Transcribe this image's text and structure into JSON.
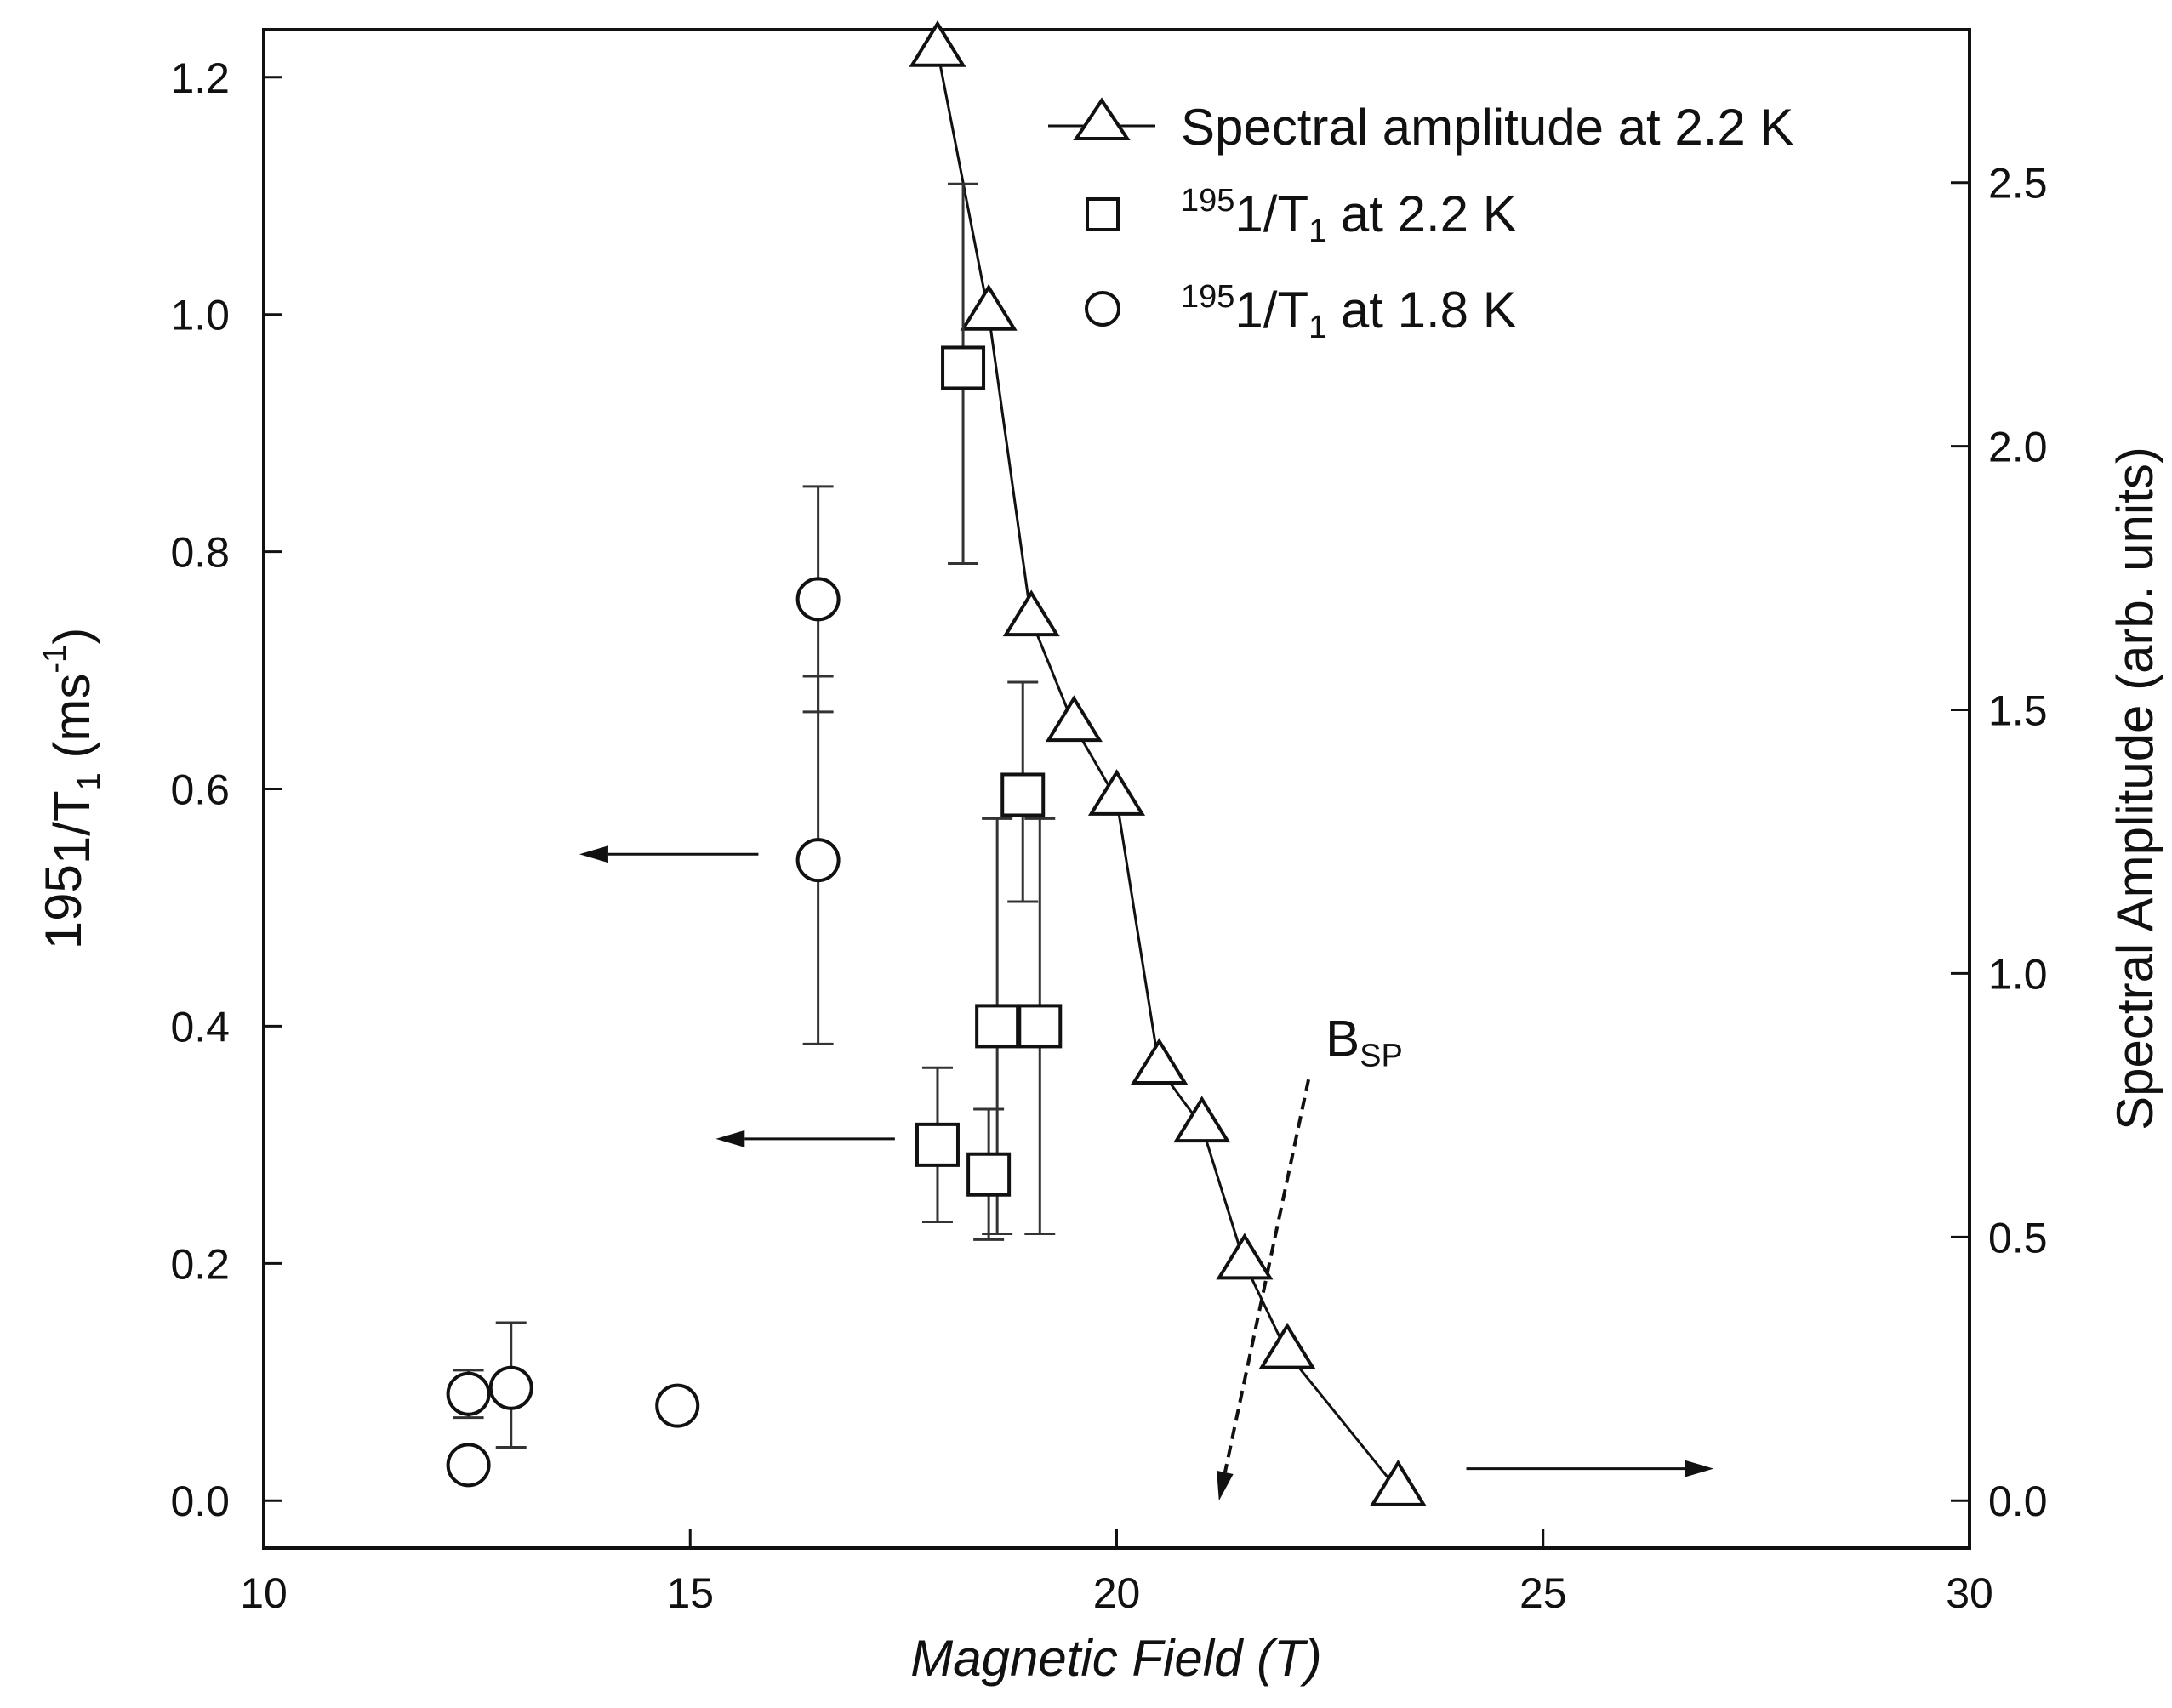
{
  "chart_data": {
    "type": "scatter",
    "xlabel": "Magnetic Field (T)",
    "ylabel_left": {
      "prefix": "195",
      "main": "1/T",
      "sub": "1",
      "unit": " (ms",
      "unit_sup": "-1",
      "close": ")"
    },
    "ylabel_right": "Spectral Amplitude (arb. units)",
    "xlim": [
      10,
      30
    ],
    "ylim_left": [
      -0.04,
      1.24
    ],
    "ylim_right": [
      -0.09,
      2.79
    ],
    "x_ticks": [
      "10",
      "15",
      "20",
      "25",
      "30"
    ],
    "x_tick_values": [
      10,
      15,
      20,
      25,
      30
    ],
    "y_left_ticks": [
      "0.0",
      "0.2",
      "0.4",
      "0.6",
      "0.8",
      "1.0",
      "1.2"
    ],
    "y_left_tick_values": [
      0.0,
      0.2,
      0.4,
      0.6,
      0.8,
      1.0,
      1.2
    ],
    "y_right_ticks": [
      "0.0",
      "0.5",
      "1.0",
      "1.5",
      "2.0",
      "2.5"
    ],
    "y_right_tick_values": [
      0.0,
      0.5,
      1.0,
      1.5,
      2.0,
      2.5
    ],
    "grid": false,
    "legend_position": "top-right",
    "series": [
      {
        "name": "Spectral amplitude at 2.2 K",
        "marker": "triangle",
        "line": true,
        "axis": "right",
        "points": [
          {
            "x": 17.9,
            "y": 2.75
          },
          {
            "x": 18.5,
            "y": 2.25
          },
          {
            "x": 19.0,
            "y": 1.67
          },
          {
            "x": 19.5,
            "y": 1.47
          },
          {
            "x": 20.0,
            "y": 1.33
          },
          {
            "x": 20.5,
            "y": 0.82
          },
          {
            "x": 21.0,
            "y": 0.71
          },
          {
            "x": 21.5,
            "y": 0.45
          },
          {
            "x": 22.0,
            "y": 0.28
          },
          {
            "x": 23.3,
            "y": 0.02
          }
        ]
      },
      {
        "name": "195 1/T1 at 2.2 K",
        "legend_parts": {
          "sup": "195",
          "main": "1/T",
          "sub": "1",
          "rest": " at 2.2 K"
        },
        "marker": "square",
        "line": false,
        "axis": "left",
        "points": [
          {
            "x": 17.9,
            "y": 0.3,
            "err_low": 0.235,
            "err_high": 0.365
          },
          {
            "x": 18.2,
            "y": 0.955,
            "err_low": 0.79,
            "err_high": 1.11
          },
          {
            "x": 18.5,
            "y": 0.275,
            "err_low": 0.22,
            "err_high": 0.33
          },
          {
            "x": 18.6,
            "y": 0.4,
            "err_low": 0.225,
            "err_high": 0.575
          },
          {
            "x": 18.9,
            "y": 0.595,
            "err_low": 0.505,
            "err_high": 0.69
          },
          {
            "x": 19.1,
            "y": 0.4,
            "err_low": 0.225,
            "err_high": 0.575
          }
        ]
      },
      {
        "name": "195 1/T1 at 1.8 K",
        "legend_parts": {
          "sup": "195",
          "main": "1/T",
          "sub": "1",
          "rest": " at 1.8 K"
        },
        "marker": "circle",
        "line": false,
        "axis": "left",
        "points": [
          {
            "x": 12.4,
            "y": 0.03
          },
          {
            "x": 12.4,
            "y": 0.09,
            "err_low": 0.07,
            "err_high": 0.11
          },
          {
            "x": 12.9,
            "y": 0.095,
            "err_low": 0.045,
            "err_high": 0.15
          },
          {
            "x": 14.85,
            "y": 0.08
          },
          {
            "x": 16.5,
            "y": 0.54,
            "err_low": 0.385,
            "err_high": 0.695
          },
          {
            "x": 16.5,
            "y": 0.76,
            "err_low": 0.665,
            "err_high": 0.855
          }
        ]
      }
    ],
    "annotations": [
      {
        "text": "B",
        "sub": "SP",
        "x": 22.45,
        "y_left": 0.375
      },
      {
        "kind": "dashed-arrow",
        "from": {
          "x": 22.25,
          "y_left": 0.355
        },
        "to": {
          "x": 21.2,
          "y_left": 0.0
        }
      },
      {
        "kind": "arrow-left",
        "from": {
          "x": 15.8,
          "y_left": 0.545
        },
        "to": {
          "x": 13.7,
          "y_left": 0.545
        }
      },
      {
        "kind": "arrow-left",
        "from": {
          "x": 17.4,
          "y_left": 0.305
        },
        "to": {
          "x": 15.3,
          "y_left": 0.305
        }
      },
      {
        "kind": "arrow-right",
        "from": {
          "x": 24.1,
          "y_left": 0.027
        },
        "to": {
          "x": 27.0,
          "y_left": 0.027
        }
      }
    ]
  }
}
